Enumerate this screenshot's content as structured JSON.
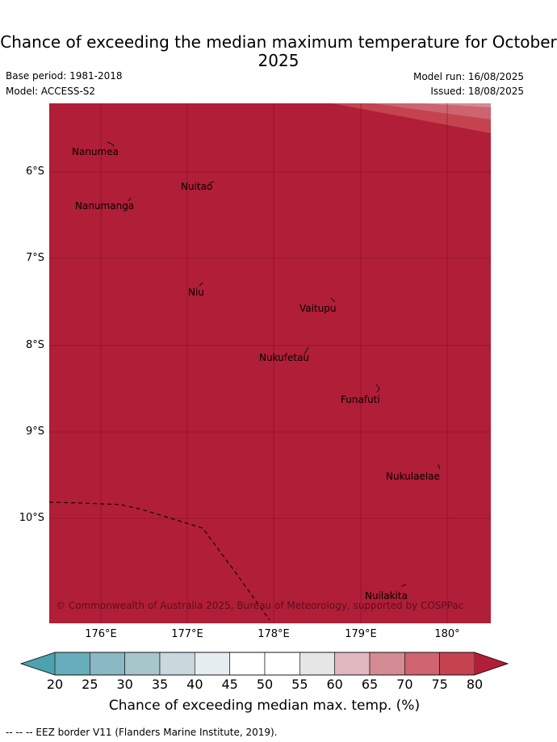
{
  "title": "Chance of exceeding the median maximum temperature for October 2025",
  "meta": {
    "base_period": "Base period: 1981-2018",
    "model": "Model: ACCESS-S2",
    "model_run": "Model run: 16/08/2025",
    "issued": "Issued: 18/08/2025"
  },
  "map": {
    "background_color": "#b11e37",
    "corner_band_colors": [
      "#c4434f",
      "#cd6470",
      "#d58b94"
    ],
    "lat_labels": [
      "6°S",
      "7°S",
      "8°S",
      "9°S",
      "10°S"
    ],
    "lon_labels": [
      "176°E",
      "177°E",
      "178°E",
      "179°E",
      "180°"
    ],
    "islands": [
      {
        "name": "Nanumea",
        "key": "nanumea"
      },
      {
        "name": "Nuitao",
        "key": "nuitao"
      },
      {
        "name": "Nanumanga",
        "key": "nanumanga"
      },
      {
        "name": "Niu",
        "key": "niu"
      },
      {
        "name": "Vaitupu",
        "key": "vaitupu"
      },
      {
        "name": "Nukufetau",
        "key": "nukufetau"
      },
      {
        "name": "Funafuti",
        "key": "funafuti"
      },
      {
        "name": "Nukulaelae",
        "key": "nukulaelae"
      },
      {
        "name": "Nuilakita",
        "key": "nuilakita"
      }
    ],
    "copyright": "© Commonwealth of Australia 2025, Bureau of Meteorology, supported by COSPPac"
  },
  "colorbar": {
    "ticks": [
      "20",
      "25",
      "30",
      "35",
      "40",
      "45",
      "50",
      "55",
      "60",
      "65",
      "70",
      "75",
      "80"
    ],
    "colors": [
      "#67adbb",
      "#8ab8c4",
      "#a7c6cc",
      "#c8d8dd",
      "#e7eef1",
      "#ffffff",
      "#ffffff",
      "#e6e6e6",
      "#e0b8c0",
      "#d58b94",
      "#cd6470",
      "#c4434f"
    ],
    "under_color": "#4ea1ae",
    "over_color": "#b11e37",
    "label": "Chance of exceeding median max. temp. (%)"
  },
  "footnote": "--  --  -- EEZ border V11 (Flanders Marine Institute, 2019)."
}
